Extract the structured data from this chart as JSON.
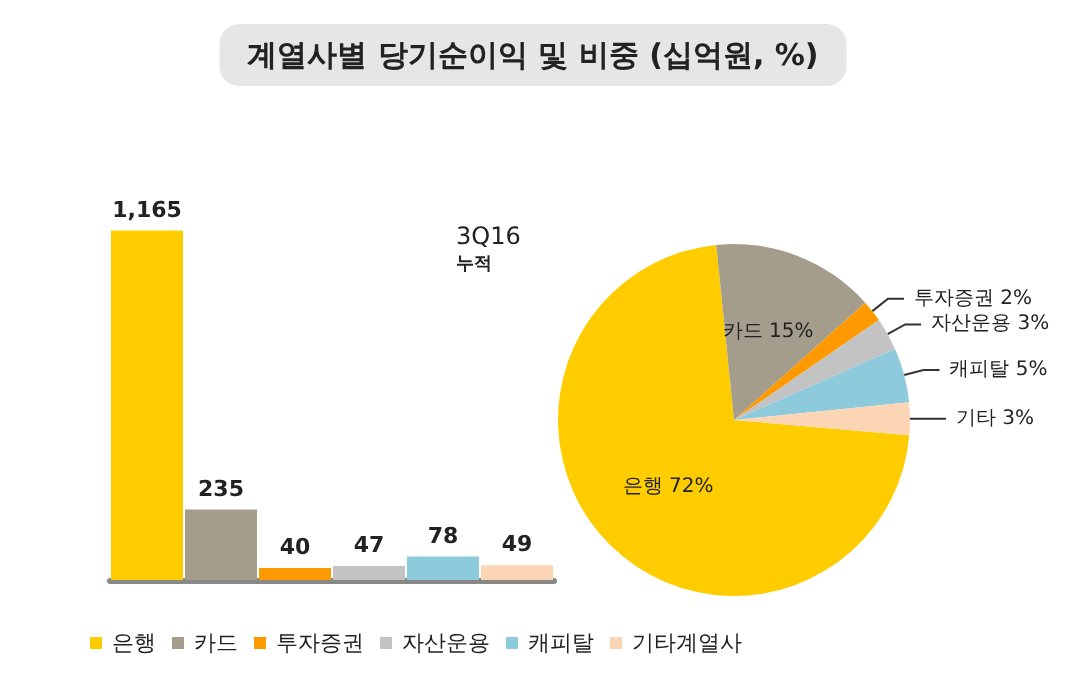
{
  "chart_data": [
    {
      "type": "bar",
      "title": "계열사별 당기순이익 및 비중 (십억원, %)",
      "annotations": [
        "3Q16",
        "누적"
      ],
      "categories": [
        null,
        null,
        null,
        null,
        null,
        null
      ],
      "stacked": true,
      "data_labels": true,
      "legend": "bottom",
      "grid": false,
      "series": [
        {
          "name": "은행",
          "color": "#ffcc00",
          "values": [
            1165,
            null,
            null,
            null,
            null,
            null
          ],
          "value_labels": [
            "1,165",
            null,
            null,
            null,
            null,
            null
          ]
        },
        {
          "name": "카드",
          "color": "#a59d8c",
          "values": [
            null,
            235,
            null,
            null,
            null,
            null
          ]
        },
        {
          "name": "투자증권",
          "color": "#ff9900",
          "values": [
            null,
            null,
            40,
            null,
            null,
            null
          ]
        },
        {
          "name": "자산운용",
          "color": "#c3c3c3",
          "values": [
            null,
            null,
            null,
            47,
            null,
            null
          ]
        },
        {
          "name": "캐피탈",
          "color": "#8dcadb",
          "values": [
            null,
            null,
            null,
            null,
            78,
            null
          ]
        },
        {
          "name": "기타계열사",
          "color": "#fcd5b4",
          "values": [
            null,
            null,
            null,
            null,
            null,
            49
          ]
        }
      ]
    },
    {
      "type": "pie",
      "categories": [
        "은행",
        "카드",
        "투자증권",
        "자산운용",
        "캐피탈",
        "기타"
      ],
      "values": [
        72,
        15,
        2,
        3,
        5,
        3
      ],
      "colors": [
        "#ffcc00",
        "#a59d8c",
        "#ff9900",
        "#c3c3c3",
        "#8dcadb",
        "#fcd5b4"
      ],
      "value_labels": [
        "72%",
        "15%",
        "2%",
        "3%",
        "5%",
        "3%"
      ]
    }
  ]
}
